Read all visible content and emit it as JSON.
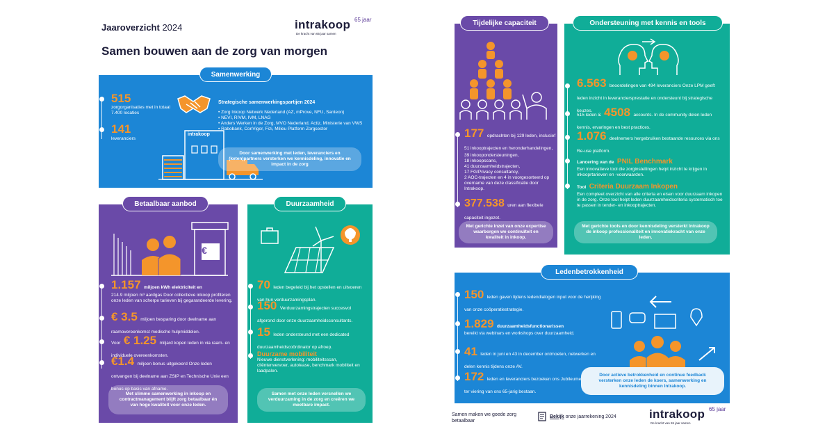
{
  "header": {
    "year_label": "Jaaroverzicht",
    "year": "2024",
    "title": "Samen bouwen aan de zorg van morgen"
  },
  "logo": {
    "word": "intrakoop",
    "jaar": "65 jaar",
    "tagline": "De kracht van 65 jaar samen"
  },
  "samenwerking": {
    "title": "Samenwerking",
    "stat1_num": "515",
    "stat1_text": "zorgorganisaties met in totaal 7.400 locaties",
    "stat2_num": "141",
    "stat2_text": "leveranciers",
    "building_label": "intrakoop",
    "partners_title": "Strategische samenwerkingspartijen 2024",
    "partners": [
      "• Zorg Inkoop Netwerk Nederland (AZ, mProve, NFU, Santeon)",
      "• NEVI, RIVM, IVM, LNAG",
      "• Anders Werken in de Zorg, MVO Nederland, Actiz, Ministerie van VWS",
      "• Rabobank, ConVigor, Fizi, Milieu Platform Zorgsector"
    ],
    "cta": "Door samenwerking met leden, leveranciers en (keten)partners versterken we kennisdeling, innovatie en impact in de zorg"
  },
  "betaalbaar": {
    "title": "Betaalbaar aanbod",
    "euro_sign": "€",
    "s1_num": "1.157",
    "s1_unit": "miljoen kWh elektriciteit en",
    "s1_text": "214.9 miljoen m³ aardgas Door collectieve inkoop profiteren onze leden van scherpe tarieven bij gegarandeerde levering.",
    "s2_num": "€ 3.5",
    "s2_text": "miljoen besparing door deelname aan raamovereenkomst medische hulpmiddelen.",
    "s3_pre": "Voor",
    "s3_num": "€ 1.25",
    "s3_text": "miljard kopen leden in via raam- en individuele overeenkomsten.",
    "s4_num": "€1.4",
    "s4_text": "miljoen bonus uitgekeerd Onze leden ontvangen bij deelname aan ZSIP en Technische Unie een bonus op basis van afname.",
    "cta": "Met slimme samenwerking in inkoop en contractmanagement blijft zorg betaalbaar én van hoge kwaliteit voor onze leden."
  },
  "duurzaamheid": {
    "title": "Duurzaamheid",
    "s1_num": "70",
    "s1_text": "leden begeleid bij het opstellen en uitvoeren van hun verduurzamingsplan.",
    "s2_num": "150",
    "s2_text": "Verduurzamingstrajecten succesvol afgerond door onze duurzaamheidsconsultants.",
    "s3_num": "15",
    "s3_text": "leden ondersteund met een dedicated duurzaamheidscoördinator op afroep.",
    "s4_title": "Duurzame mobiliteit",
    "s4_text": "Nieuwe dienstverlening: mobiliteitsscan, cliëntenvervoer, autolease, benchmark mobiliteit en laadpalen.",
    "cta": "Samen met onze leden versnellen we verduurzaming in de zorg en creëren we meetbare impact."
  },
  "capaciteit": {
    "title": "Tijdelijke capaciteit",
    "s1_num": "177",
    "s1_text": "opdrachten bij 129 leden, inclusief 51 inkooptrajecten en heronderhandelingen,",
    "list": [
      "39 inkoopondersteuningen,",
      "18 inkoopscans,",
      "41 duurzaamheidstrajecten,",
      "17 FG/Privacy consultancy,",
      "2 AOC-trajecten en 4 in voorgesorteerd op overname van deze classificatie door Intrakoop."
    ],
    "s2_num": "377.538",
    "s2_text": "uren aan flexibele capaciteit ingezet.",
    "cta": "Met gerichte inzet van onze expertise waarborgen we continuïteit en kwaliteit in inkoop."
  },
  "ondersteuning": {
    "title": "Ondersteuning met kennis en tools",
    "s1_num": "6.563",
    "s1_text": "beoordelingen van 494 leveranciers Onze LPM geeft leden inzicht in leveranciersprestatie en ondersteunt bij strategische keuzes.",
    "s2_pre": "515 leden &",
    "s2_num": "4508",
    "s2_text": "accounts. In de community delen leden kennis, ervaringen en best practices.",
    "s3_num": "1.076",
    "s3_text": "deelnemers hergebruiken bestaande resources via ons Re-use platform.",
    "s4_pre": "Lancering van de",
    "s4_title": "PNIL Benchmark",
    "s4_text": "Een innovatieve tool die zorginstellingen helpt inzicht te krijgen in inkooprtarieven en -voorwaarden.",
    "s5_pre": "Tool",
    "s5_title": "Criteria Duurzaam Inkopen",
    "s5_text": "Een compleet overzicht van alle criteria en eisen voor duurzaam inkopen in de zorg. Onze tool helpt leden duurzaamheidscriteria systematisch toe te passen in tender- en inkooptrajecten.",
    "cta": "Met gerichte tools en door kennisdeling versterkt Intrakoop de inkoop professionaliteit en innovatiekracht van onze leden."
  },
  "leden": {
    "title": "Ledenbetrokkenheid",
    "s1_num": "150",
    "s1_text": "leden gaven tijdens ledendialogen input voor de herijking van onze coöperatiestrategie.",
    "s2_num": "1.829",
    "s2_text1": "duurzaamheidsfunctionarissen",
    "s2_text2": "bereikt via webinars en workshops over duurzaamheid.",
    "s3_num": "41",
    "s3_text": "leden in juni en 43 in december ontmoeten, netwerken en delen kennis tijdens onze AV.",
    "s4_num": "172",
    "s4_text": "leden en leveranciers bezoeken ons Jubileumevenement ter viering van ons 65-jarig bestaan.",
    "cta": "Door actieve betrokkenheid en continue feedback versterken onze leden de koers, samenwerking en kennisdeling binnen Intrakoop."
  },
  "footer": {
    "slogan": "Samen maken we goede zorg betaalbaar",
    "link_bold": "Bekijk",
    "link_rest": "onze jaarrekening 2024"
  },
  "colors": {
    "blue": "#1c86d6",
    "purple": "#6a4aa8",
    "teal": "#10ad98",
    "orange": "#f4952b"
  }
}
